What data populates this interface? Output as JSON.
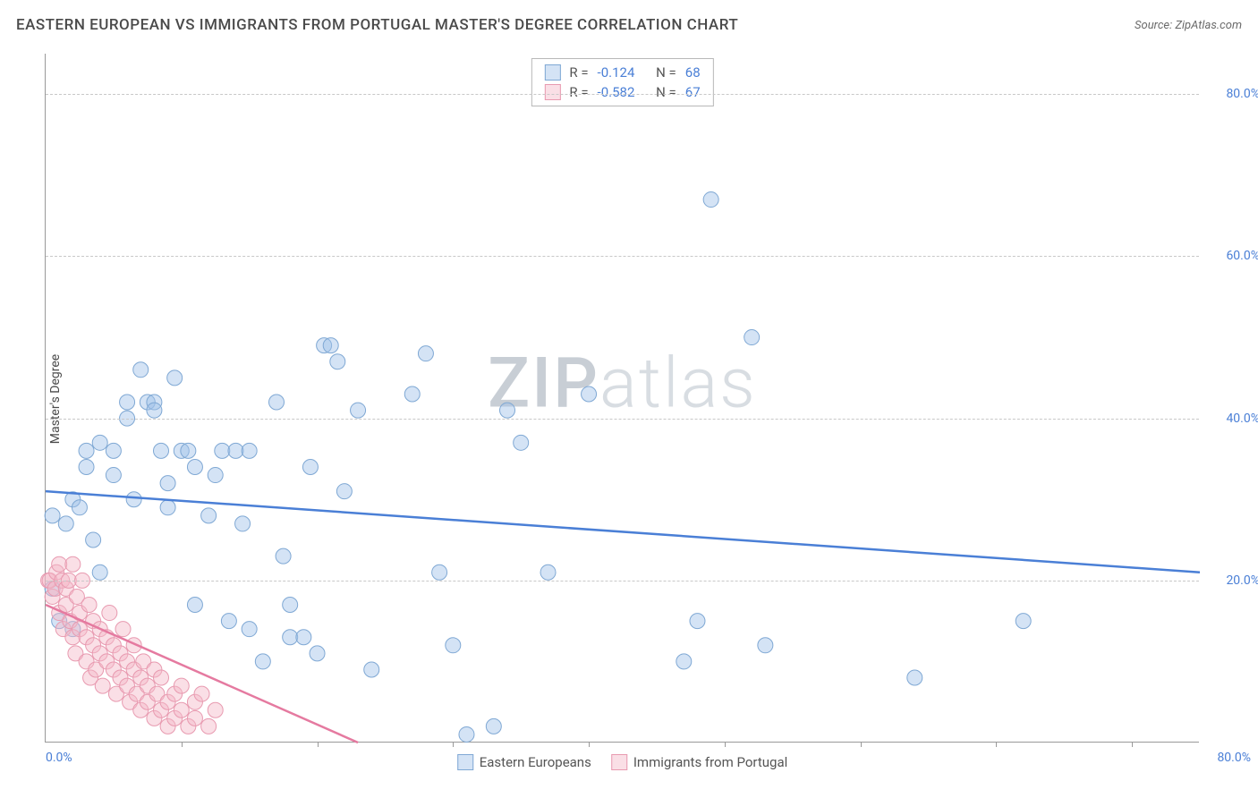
{
  "title": "EASTERN EUROPEAN VS IMMIGRANTS FROM PORTUGAL MASTER'S DEGREE CORRELATION CHART",
  "source_prefix": "Source: ",
  "source_name": "ZipAtlas.com",
  "ylabel": "Master's Degree",
  "watermark": {
    "part1": "ZIP",
    "part2": "atlas"
  },
  "chart": {
    "type": "scatter",
    "xlim": [
      0,
      85
    ],
    "ylim": [
      0,
      85
    ],
    "grid_color": "#c8c8c8",
    "axis_color": "#999999",
    "background_color": "#ffffff",
    "gridlines_x": [
      20,
      40,
      60,
      80
    ],
    "gridlines_y": [
      20,
      40,
      60,
      80
    ],
    "tick_minor_x": [
      10,
      30,
      50,
      70
    ],
    "xticks": [
      {
        "pos": 0,
        "label": "0.0%"
      },
      {
        "pos": 80,
        "label": "80.0%"
      }
    ],
    "yticks": [
      {
        "pos": 20,
        "label": "20.0%"
      },
      {
        "pos": 40,
        "label": "40.0%"
      },
      {
        "pos": 60,
        "label": "60.0%"
      },
      {
        "pos": 80,
        "label": "80.0%"
      }
    ],
    "series": [
      {
        "name": "Eastern Europeans",
        "color": "#9fc2e8",
        "fill": "rgba(159,194,232,0.45)",
        "stroke": "#7fa8d4",
        "line_color": "#4a7fd6",
        "marker_radius": 8.5,
        "stats": {
          "R_label": "R =",
          "R": "-0.124",
          "N_label": "N =",
          "N": "68"
        },
        "trend": {
          "x1": 0,
          "y1": 31,
          "x2": 85,
          "y2": 21
        },
        "points": [
          [
            0.5,
            28
          ],
          [
            0.5,
            19
          ],
          [
            1,
            15
          ],
          [
            1.5,
            27
          ],
          [
            2,
            14
          ],
          [
            2,
            30
          ],
          [
            2.5,
            29
          ],
          [
            3,
            36
          ],
          [
            3,
            34
          ],
          [
            3.5,
            25
          ],
          [
            4,
            37
          ],
          [
            4,
            21
          ],
          [
            5,
            33
          ],
          [
            5,
            36
          ],
          [
            6,
            42
          ],
          [
            6,
            40
          ],
          [
            6.5,
            30
          ],
          [
            7,
            46
          ],
          [
            7.5,
            42
          ],
          [
            8,
            42
          ],
          [
            8,
            41
          ],
          [
            8.5,
            36
          ],
          [
            9,
            32
          ],
          [
            9,
            29
          ],
          [
            9.5,
            45
          ],
          [
            10,
            36
          ],
          [
            10.5,
            36
          ],
          [
            11,
            34
          ],
          [
            11,
            17
          ],
          [
            12,
            28
          ],
          [
            12.5,
            33
          ],
          [
            13,
            36
          ],
          [
            13.5,
            15
          ],
          [
            14,
            36
          ],
          [
            14.5,
            27
          ],
          [
            15,
            36
          ],
          [
            15,
            14
          ],
          [
            16,
            10
          ],
          [
            17,
            42
          ],
          [
            17.5,
            23
          ],
          [
            18,
            17
          ],
          [
            18,
            13
          ],
          [
            19,
            13
          ],
          [
            19.5,
            34
          ],
          [
            20,
            11
          ],
          [
            20.5,
            49
          ],
          [
            21,
            49
          ],
          [
            21.5,
            47
          ],
          [
            22,
            31
          ],
          [
            23,
            41
          ],
          [
            24,
            9
          ],
          [
            27,
            43
          ],
          [
            28,
            48
          ],
          [
            29,
            21
          ],
          [
            30,
            12
          ],
          [
            31,
            1
          ],
          [
            33,
            2
          ],
          [
            34,
            41
          ],
          [
            35,
            37
          ],
          [
            37,
            21
          ],
          [
            40,
            43
          ],
          [
            47,
            10
          ],
          [
            48,
            15
          ],
          [
            49,
            67
          ],
          [
            52,
            50
          ],
          [
            53,
            12
          ],
          [
            64,
            8
          ],
          [
            72,
            15
          ]
        ]
      },
      {
        "name": "Immigrants from Portugal",
        "color": "#f4b8c8",
        "fill": "rgba(244,184,200,0.45)",
        "stroke": "#e89ab0",
        "line_color": "#e57aa0",
        "marker_radius": 8.5,
        "stats": {
          "R_label": "R =",
          "R": "-0.582",
          "N_label": "N =",
          "N": "67"
        },
        "trend": {
          "x1": 0,
          "y1": 17,
          "x2": 23,
          "y2": 0
        },
        "points": [
          [
            0.2,
            20
          ],
          [
            0.3,
            20
          ],
          [
            0.5,
            18
          ],
          [
            0.7,
            19
          ],
          [
            0.8,
            21
          ],
          [
            1,
            22
          ],
          [
            1,
            16
          ],
          [
            1.2,
            20
          ],
          [
            1.3,
            14
          ],
          [
            1.5,
            19
          ],
          [
            1.5,
            17
          ],
          [
            1.7,
            20
          ],
          [
            1.8,
            15
          ],
          [
            2,
            13
          ],
          [
            2,
            22
          ],
          [
            2.2,
            11
          ],
          [
            2.3,
            18
          ],
          [
            2.5,
            14
          ],
          [
            2.5,
            16
          ],
          [
            2.7,
            20
          ],
          [
            3,
            10
          ],
          [
            3,
            13
          ],
          [
            3.2,
            17
          ],
          [
            3.3,
            8
          ],
          [
            3.5,
            15
          ],
          [
            3.5,
            12
          ],
          [
            3.7,
            9
          ],
          [
            4,
            11
          ],
          [
            4,
            14
          ],
          [
            4.2,
            7
          ],
          [
            4.5,
            13
          ],
          [
            4.5,
            10
          ],
          [
            4.7,
            16
          ],
          [
            5,
            9
          ],
          [
            5,
            12
          ],
          [
            5.2,
            6
          ],
          [
            5.5,
            11
          ],
          [
            5.5,
            8
          ],
          [
            5.7,
            14
          ],
          [
            6,
            7
          ],
          [
            6,
            10
          ],
          [
            6.2,
            5
          ],
          [
            6.5,
            9
          ],
          [
            6.5,
            12
          ],
          [
            6.7,
            6
          ],
          [
            7,
            8
          ],
          [
            7,
            4
          ],
          [
            7.2,
            10
          ],
          [
            7.5,
            7
          ],
          [
            7.5,
            5
          ],
          [
            8,
            3
          ],
          [
            8,
            9
          ],
          [
            8.2,
            6
          ],
          [
            8.5,
            4
          ],
          [
            8.5,
            8
          ],
          [
            9,
            5
          ],
          [
            9,
            2
          ],
          [
            9.5,
            6
          ],
          [
            9.5,
            3
          ],
          [
            10,
            7
          ],
          [
            10,
            4
          ],
          [
            10.5,
            2
          ],
          [
            11,
            5
          ],
          [
            11,
            3
          ],
          [
            11.5,
            6
          ],
          [
            12,
            2
          ],
          [
            12.5,
            4
          ]
        ]
      }
    ]
  }
}
